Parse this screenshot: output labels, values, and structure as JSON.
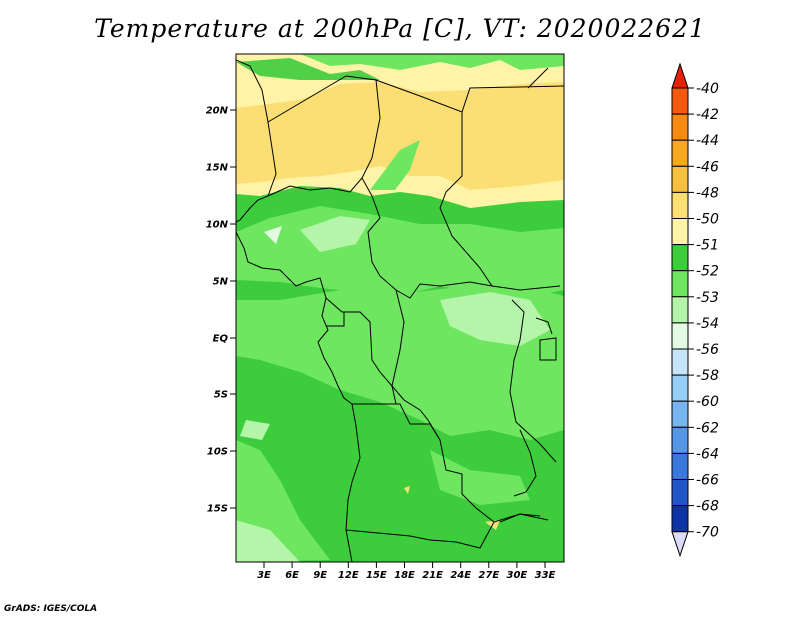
{
  "title": "Temperature at 200hPa [C], VT: 2020022621",
  "footer": "GrADS: IGES/COLA",
  "map": {
    "lat_ticks": [
      "20N",
      "15N",
      "10N",
      "5N",
      "EQ",
      "5S",
      "10S",
      "15S"
    ],
    "lon_ticks": [
      "3E",
      "6E",
      "9E",
      "12E",
      "15E",
      "18E",
      "21E",
      "24E",
      "27E",
      "30E",
      "33E"
    ]
  },
  "colorbar": {
    "levels": [
      "-40",
      "-42",
      "-44",
      "-46",
      "-48",
      "-50",
      "-51",
      "-52",
      "-53",
      "-54",
      "-56",
      "-58",
      "-60",
      "-62",
      "-64",
      "-66",
      "-68",
      "-70"
    ],
    "colors": {
      "top_arrow": "#e8200c",
      "c1": "#f55a10",
      "c2": "#f78a12",
      "c3": "#f8a821",
      "c4": "#f7c03c",
      "c5": "#fbdf74",
      "c6": "#fff3a8",
      "c7": "#3ccc3c",
      "c8": "#6ee660",
      "c9": "#b4f5aa",
      "c10": "#e4fae2",
      "c11": "#c6e6f8",
      "c12": "#96cef8",
      "c13": "#78b4f0",
      "c14": "#5596e8",
      "c15": "#3a78dc",
      "c16": "#2056c8",
      "c17": "#1034a8",
      "bottom_arrow": "#dcdcf8"
    }
  }
}
